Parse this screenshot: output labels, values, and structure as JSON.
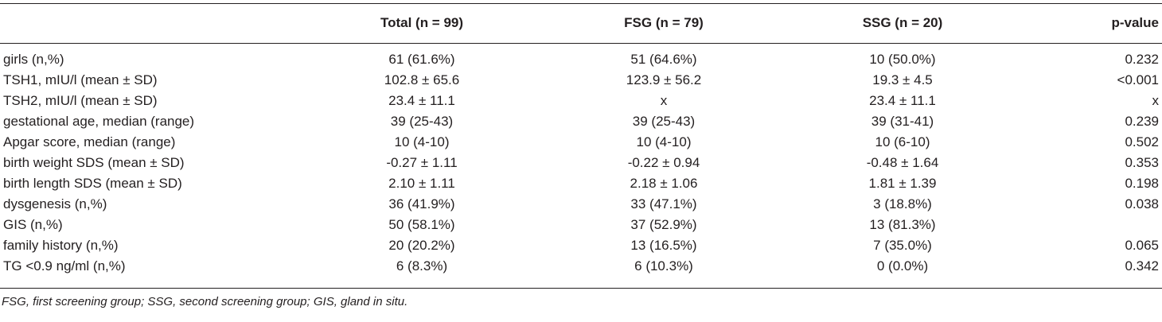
{
  "table": {
    "headers": [
      "",
      "Total (n = 99)",
      "FSG (n = 79)",
      "SSG (n = 20)",
      "p-value"
    ],
    "rows": [
      [
        "girls (n,%)",
        "61 (61.6%)",
        "51 (64.6%)",
        "10 (50.0%)",
        "0.232"
      ],
      [
        "TSH1, mIU/l (mean ± SD)",
        "102.8 ± 65.6",
        "123.9 ± 56.2",
        "19.3 ± 4.5",
        "<0.001"
      ],
      [
        "TSH2, mIU/l (mean ± SD)",
        "23.4 ± 11.1",
        "x",
        "23.4 ± 11.1",
        "x"
      ],
      [
        "gestational age, median (range)",
        "39 (25-43)",
        "39 (25-43)",
        "39 (31-41)",
        "0.239"
      ],
      [
        "Apgar score, median (range)",
        "10 (4-10)",
        "10 (4-10)",
        "10 (6-10)",
        "0.502"
      ],
      [
        "birth weight SDS (mean ± SD)",
        "-0.27 ± 1.11",
        "-0.22 ± 0.94",
        "-0.48 ± 1.64",
        "0.353"
      ],
      [
        "birth length SDS (mean ± SD)",
        "2.10 ± 1.11",
        "2.18 ± 1.06",
        "1.81 ± 1.39",
        "0.198"
      ],
      [
        "dysgenesis (n,%)",
        "36 (41.9%)",
        "33 (47.1%)",
        "3 (18.8%)",
        "0.038"
      ],
      [
        "GIS (n,%)",
        "50 (58.1%)",
        "37 (52.9%)",
        "13 (81.3%)",
        ""
      ],
      [
        "family history (n,%)",
        "20 (20.2%)",
        "13 (16.5%)",
        "7 (35.0%)",
        "0.065"
      ],
      [
        "TG <0.9 ng/ml (n,%)",
        "6 (8.3%)",
        "6 (10.3%)",
        "0 (0.0%)",
        "0.342"
      ]
    ]
  },
  "footnote": "FSG, first screening group; SSG, second screening group; GIS, gland in situ."
}
